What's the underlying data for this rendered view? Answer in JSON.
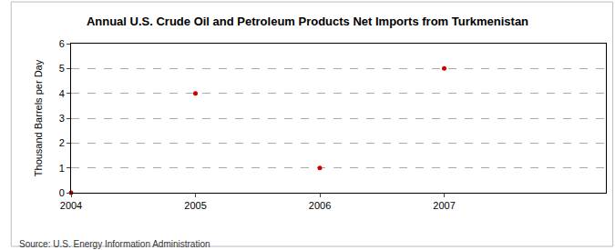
{
  "chart_data": {
    "type": "scatter",
    "title": "Annual U.S. Crude Oil and Petroleum Products Net Imports from Turkmenistan",
    "y_label": "Thousand Barrels per Day",
    "annotations": [
      "Source: U.S. Energy Information Administration"
    ],
    "x": [
      2004,
      2005,
      2006,
      2007
    ],
    "values": [
      0,
      4,
      1,
      5
    ],
    "color": "#cc0000",
    "marker": "circle",
    "xlim": [
      2004,
      2008.3
    ],
    "xticks": [
      2004,
      2005,
      2006,
      2007
    ],
    "ylim": [
      0,
      6
    ],
    "yticks": [
      0,
      1,
      2,
      3,
      4,
      5,
      6
    ],
    "grid": true
  }
}
